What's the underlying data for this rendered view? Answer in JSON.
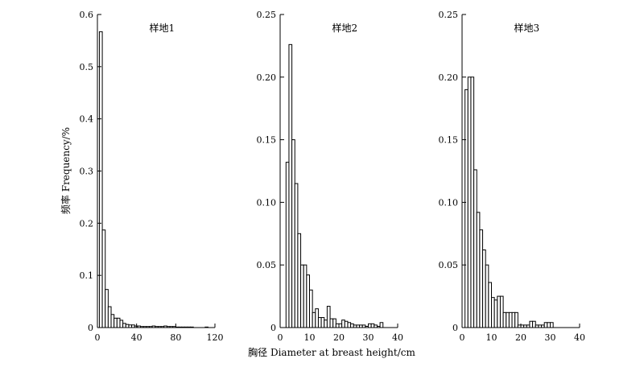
{
  "ylabel": "频率 Frequency/%",
  "xlabel": "胸径 Diameter at breast height/cm",
  "chart_data": [
    {
      "type": "bar",
      "title": "样地1",
      "xlim": [
        0,
        120
      ],
      "ylim": [
        0,
        0.6
      ],
      "xticks": [
        "0",
        "40",
        "80",
        "120"
      ],
      "yticks": [
        "0",
        "0.1",
        "0.2",
        "0.3",
        "0.4",
        "0.5",
        "0.6"
      ],
      "bin_width": 3,
      "x_start": 2,
      "values": [
        0.567,
        0.187,
        0.073,
        0.04,
        0.025,
        0.018,
        0.018,
        0.014,
        0.008,
        0.006,
        0.005,
        0.005,
        0.003,
        0.003,
        0.002,
        0.002,
        0.002,
        0.002,
        0.003,
        0.002,
        0.002,
        0.002,
        0.003,
        0.002,
        0.002,
        0.002,
        0.001,
        0.001,
        0.001,
        0.001,
        0.001,
        0.001,
        0.0,
        0.0,
        0.0,
        0.0,
        0.001,
        0.0,
        0.0,
        0.0
      ]
    },
    {
      "type": "bar",
      "title": "样地2",
      "xlim": [
        0,
        40
      ],
      "ylim": [
        0,
        0.25
      ],
      "xticks": [
        "0",
        "10",
        "20",
        "30",
        "40"
      ],
      "yticks": [
        "0",
        "0.05",
        "0.10",
        "0.15",
        "0.20",
        "0.25"
      ],
      "bin_width": 1,
      "x_start": 2,
      "values": [
        0.132,
        0.226,
        0.15,
        0.115,
        0.075,
        0.05,
        0.05,
        0.042,
        0.03,
        0.012,
        0.015,
        0.008,
        0.008,
        0.006,
        0.017,
        0.007,
        0.007,
        0.003,
        0.003,
        0.006,
        0.005,
        0.004,
        0.003,
        0.002,
        0.002,
        0.002,
        0.002,
        0.001,
        0.003,
        0.003,
        0.002,
        0.001,
        0.004
      ]
    },
    {
      "type": "bar",
      "title": "样地3",
      "xlim": [
        0,
        40
      ],
      "ylim": [
        0,
        0.25
      ],
      "xticks": [
        "0",
        "10",
        "20",
        "30",
        "40"
      ],
      "yticks": [
        "0",
        "0.05",
        "0.10",
        "0.15",
        "0.20",
        "0.25"
      ],
      "bin_width": 1,
      "x_start": 1,
      "values": [
        0.19,
        0.2,
        0.2,
        0.126,
        0.092,
        0.078,
        0.062,
        0.05,
        0.036,
        0.024,
        0.022,
        0.025,
        0.025,
        0.012,
        0.012,
        0.012,
        0.012,
        0.012,
        0.002,
        0.002,
        0.002,
        0.002,
        0.005,
        0.005,
        0.002,
        0.002,
        0.002,
        0.004,
        0.004,
        0.004
      ]
    }
  ]
}
